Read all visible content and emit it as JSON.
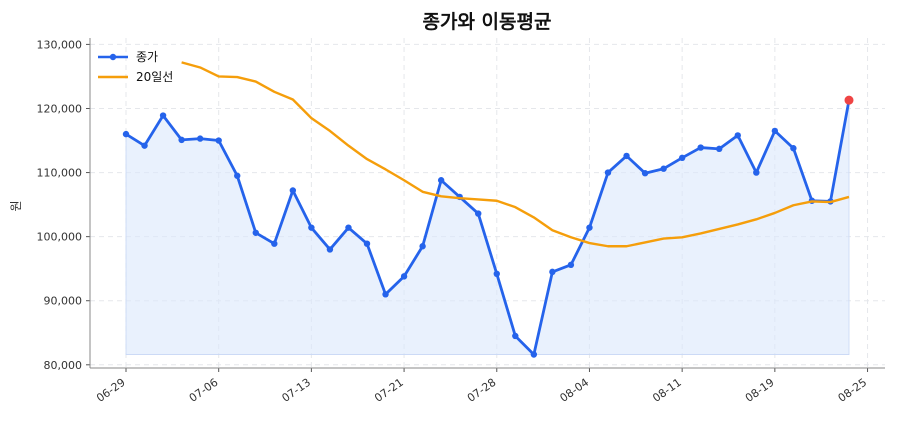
{
  "chart_data": {
    "type": "line",
    "title": "종가와 이동평균",
    "xlabel": "",
    "ylabel": "원",
    "ylim": [
      79500,
      131000
    ],
    "yticks": [
      80000,
      90000,
      100000,
      110000,
      120000,
      130000
    ],
    "ytick_labels": [
      "80,000",
      "90,000",
      "100,000",
      "110,000",
      "120,000",
      "130,000"
    ],
    "xtick_index": [
      0,
      5,
      10,
      15,
      20,
      25,
      30,
      35,
      40
    ],
    "xtick_labels": [
      "06-29",
      "07-06",
      "07-13",
      "07-21",
      "07-28",
      "08-04",
      "08-11",
      "08-19",
      "08-25"
    ],
    "grid": true,
    "legend_position": "top-left",
    "series": [
      {
        "name": "종가",
        "color": "#2563eb",
        "marker": "circle",
        "fill": true,
        "values": [
          116000,
          114200,
          118900,
          115100,
          115300,
          115000,
          109500,
          100600,
          98900,
          107200,
          101400,
          98000,
          101400,
          98900,
          91000,
          93800,
          98500,
          108800,
          106200,
          103600,
          94200,
          84500,
          81600,
          94500,
          95600,
          101400,
          110000,
          112600,
          109900,
          110600,
          112300,
          113900,
          113700,
          115800,
          110000,
          116500,
          113800,
          105600,
          105500,
          121300
        ]
      },
      {
        "name": "20일선",
        "color": "#f59e0b",
        "marker": "none",
        "values": [
          null,
          null,
          null,
          127200,
          126400,
          125000,
          124900,
          124200,
          122600,
          121400,
          118500,
          116500,
          114200,
          112100,
          110500,
          108800,
          107000,
          106300,
          106000,
          105800,
          105600,
          104600,
          103000,
          101000,
          99900,
          99000,
          98500,
          98500,
          99100,
          99700,
          99900,
          100500,
          101200,
          101900,
          102700,
          103700,
          104900,
          105500,
          105400,
          106200
        ]
      }
    ],
    "highlight_last": {
      "color": "#ef4444"
    }
  }
}
